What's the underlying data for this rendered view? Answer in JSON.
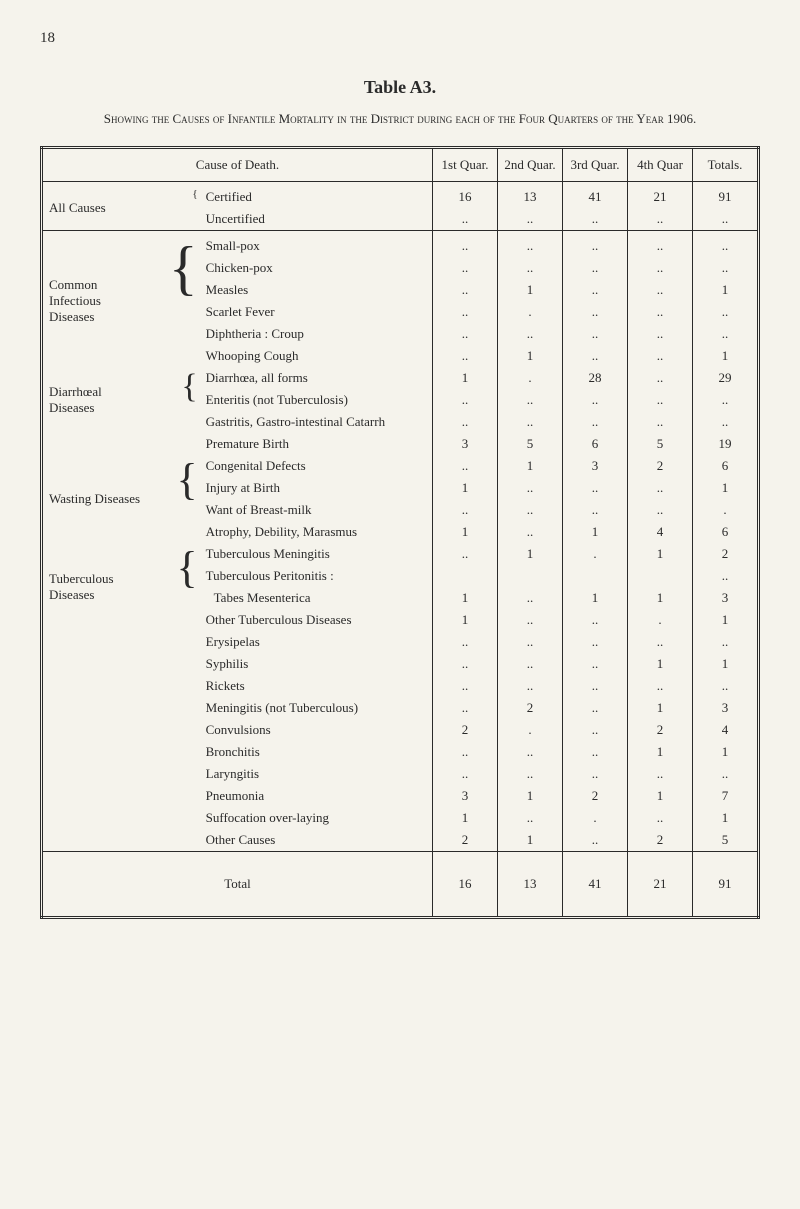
{
  "page_number": "18",
  "title": "Table A3.",
  "subtitle": "Showing the Causes of Infantile Mortality in the District during each of the Four Quarters of the Year 1906.",
  "headers": {
    "cause": "Cause of Death.",
    "q1": "1st Quar.",
    "q2": "2nd Quar.",
    "q3": "3rd Quar.",
    "q4": "4th Quar",
    "totals": "Totals."
  },
  "all_causes": {
    "group_label": "All Causes",
    "rows": [
      {
        "label": "Certified",
        "q1": "16",
        "q2": "13",
        "q3": "41",
        "q4": "21",
        "tot": "91"
      },
      {
        "label": "Uncertified",
        "q1": "..",
        "q2": "..",
        "q3": "..",
        "q4": "..",
        "tot": ".."
      }
    ]
  },
  "common": {
    "group_label": "Common Infectious Diseases",
    "rows": [
      {
        "label": "Small-pox",
        "q1": "..",
        "q2": "..",
        "q3": "..",
        "q4": "..",
        "tot": ".."
      },
      {
        "label": "Chicken-pox",
        "q1": "..",
        "q2": "..",
        "q3": "..",
        "q4": "..",
        "tot": ".."
      },
      {
        "label": "Measles",
        "q1": "..",
        "q2": "1",
        "q3": "..",
        "q4": "..",
        "tot": "1"
      },
      {
        "label": "Scarlet Fever",
        "q1": "..",
        "q2": ".",
        "q3": "..",
        "q4": "..",
        "tot": ".."
      },
      {
        "label": "Diphtheria : Croup",
        "q1": "..",
        "q2": "..",
        "q3": "..",
        "q4": "..",
        "tot": ".."
      },
      {
        "label": "Whooping Cough",
        "q1": "..",
        "q2": "1",
        "q3": "..",
        "q4": "..",
        "tot": "1"
      }
    ]
  },
  "diarrhoeal": {
    "group_label": "Diarrhœal Diseases",
    "rows": [
      {
        "label": "Diarrhœa, all forms",
        "q1": "1",
        "q2": ".",
        "q3": "28",
        "q4": "..",
        "tot": "29"
      },
      {
        "label": "Enteritis (not Tuberculosis)",
        "q1": "..",
        "q2": "..",
        "q3": "..",
        "q4": "..",
        "tot": ".."
      },
      {
        "label": "Gastritis, Gastro-intestinal Catarrh",
        "q1": "..",
        "q2": "..",
        "q3": "..",
        "q4": "..",
        "tot": ".."
      }
    ]
  },
  "misc1": {
    "rows": [
      {
        "label": "Premature Birth",
        "q1": "3",
        "q2": "5",
        "q3": "6",
        "q4": "5",
        "tot": "19"
      }
    ]
  },
  "wasting": {
    "group_label": "Wasting Diseases",
    "rows": [
      {
        "label": "Congenital Defects",
        "q1": "..",
        "q2": "1",
        "q3": "3",
        "q4": "2",
        "tot": "6"
      },
      {
        "label": "Injury at Birth",
        "q1": "1",
        "q2": "..",
        "q3": "..",
        "q4": "..",
        "tot": "1"
      },
      {
        "label": "Want of Breast-milk",
        "q1": "..",
        "q2": "..",
        "q3": "..",
        "q4": "..",
        "tot": "."
      },
      {
        "label": "Atrophy, Debility, Marasmus",
        "q1": "1",
        "q2": "..",
        "q3": "1",
        "q4": "4",
        "tot": "6"
      }
    ]
  },
  "tuberculous": {
    "group_label": "Tuberculous Diseases",
    "rows": [
      {
        "label": "Tuberculous Meningitis",
        "q1": "..",
        "q2": "1",
        "q3": ".",
        "q4": "1",
        "tot": "2"
      },
      {
        "label": "Tuberculous Peritonitis :",
        "q1": "",
        "q2": "",
        "q3": "",
        "q4": "",
        "tot": ".."
      },
      {
        "label": "Tabes Mesenterica",
        "q1": "1",
        "q2": "..",
        "q3": "1",
        "q4": "1",
        "tot": "3"
      },
      {
        "label": "Other Tuberculous Diseases",
        "q1": "1",
        "q2": "..",
        "q3": "..",
        "q4": ".",
        "tot": "1"
      }
    ]
  },
  "misc2": {
    "rows": [
      {
        "label": "Erysipelas",
        "q1": "..",
        "q2": "..",
        "q3": "..",
        "q4": "..",
        "tot": ".."
      },
      {
        "label": "Syphilis",
        "q1": "..",
        "q2": "..",
        "q3": "..",
        "q4": "1",
        "tot": "1"
      },
      {
        "label": "Rickets",
        "q1": "..",
        "q2": "..",
        "q3": "..",
        "q4": "..",
        "tot": ".."
      },
      {
        "label": "Meningitis (not Tuberculous)",
        "q1": "..",
        "q2": "2",
        "q3": "..",
        "q4": "1",
        "tot": "3"
      },
      {
        "label": "Convulsions",
        "q1": "2",
        "q2": ".",
        "q3": "..",
        "q4": "2",
        "tot": "4"
      },
      {
        "label": "Bronchitis",
        "q1": "..",
        "q2": "..",
        "q3": "..",
        "q4": "1",
        "tot": "1"
      },
      {
        "label": "Laryngitis",
        "q1": "..",
        "q2": "..",
        "q3": "..",
        "q4": "..",
        "tot": ".."
      },
      {
        "label": "Pneumonia",
        "q1": "3",
        "q2": "1",
        "q3": "2",
        "q4": "1",
        "tot": "7"
      },
      {
        "label": "Suffocation over-laying",
        "q1": "1",
        "q2": "..",
        "q3": ".",
        "q4": "..",
        "tot": "1"
      },
      {
        "label": "Other Causes",
        "q1": "2",
        "q2": "1",
        "q3": "..",
        "q4": "2",
        "tot": "5"
      }
    ]
  },
  "total": {
    "label": "Total",
    "q1": "16",
    "q2": "13",
    "q3": "41",
    "q4": "21",
    "tot": "91"
  }
}
